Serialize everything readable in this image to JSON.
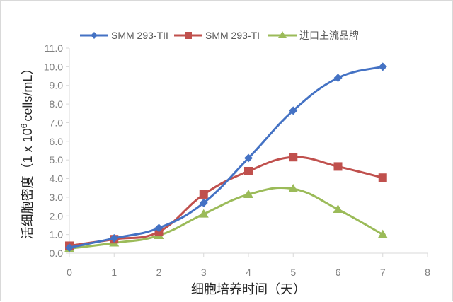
{
  "chart_data": {
    "type": "line",
    "title": "",
    "xlabel": "细胞培养时间（天）",
    "ylabel": "活细胞密度（1 x 10^6 cells/mL）",
    "ylabel_parts": {
      "cn": "活细胞密度",
      "open": "（",
      "unit_pre": "1 x 10",
      "sup": "6",
      "unit_post": "cells/mL",
      "close": "）"
    },
    "xlim": [
      0,
      8
    ],
    "ylim": [
      0,
      11
    ],
    "x_ticks": [
      "0",
      "1",
      "2",
      "3",
      "4",
      "5",
      "6",
      "7",
      "8"
    ],
    "y_ticks": [
      "0.0",
      "1.0",
      "2.0",
      "3.0",
      "4.0",
      "5.0",
      "6.0",
      "7.0",
      "8.0",
      "9.0",
      "10.0",
      "11.0"
    ],
    "grid": false,
    "smooth": true,
    "legend_position": "top",
    "x": [
      0,
      1,
      2,
      3,
      4,
      5,
      6,
      7
    ],
    "series": [
      {
        "name": "SMM 293-TII",
        "color": "#4472c4",
        "marker": "diamond",
        "values": [
          0.3,
          0.8,
          1.35,
          2.7,
          5.1,
          7.65,
          9.4,
          10.0
        ]
      },
      {
        "name": "SMM 293-TI",
        "color": "#c0504d",
        "marker": "square",
        "values": [
          0.4,
          0.75,
          1.15,
          3.15,
          4.4,
          5.15,
          4.65,
          4.05
        ]
      },
      {
        "name": "进口主流品牌",
        "color": "#9bbb59",
        "marker": "triangle",
        "values": [
          0.25,
          0.55,
          0.95,
          2.1,
          3.15,
          3.45,
          2.35,
          1.0
        ]
      }
    ]
  }
}
